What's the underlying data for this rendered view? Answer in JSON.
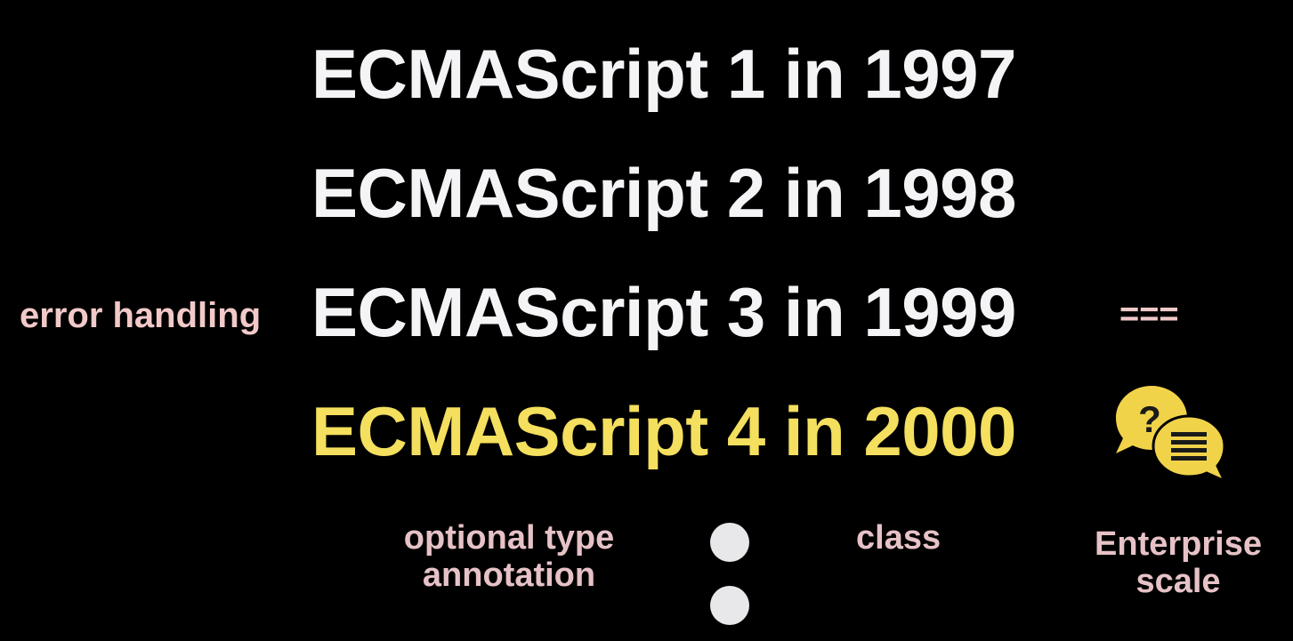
{
  "colors": {
    "background": "#000000",
    "headline": "#f4f4f6",
    "highlight": "#f4df5e",
    "note_pink": "#f2c9c9",
    "note_rose": "#e6c2c6",
    "dot": "#e8e8ea",
    "icon_yellow": "#f1d34a",
    "icon_dark": "#1a1a1a"
  },
  "versions": [
    {
      "label": "ECMAScript 1 in 1997"
    },
    {
      "label": "ECMAScript 2 in 1998"
    },
    {
      "label": "ECMAScript 3 in 1999"
    },
    {
      "label": "ECMAScript 4 in 2000"
    }
  ],
  "notes": {
    "error_handling": "error handling",
    "strict_equality": "===",
    "optional_type_line1": "optional type",
    "optional_type_line2": "annotation",
    "class": "class",
    "enterprise_line1": "Enterprise",
    "enterprise_line2": "scale"
  },
  "icons": {
    "chat": "chat-bubbles-question-icon",
    "dots": "bullet-dot-icon"
  }
}
